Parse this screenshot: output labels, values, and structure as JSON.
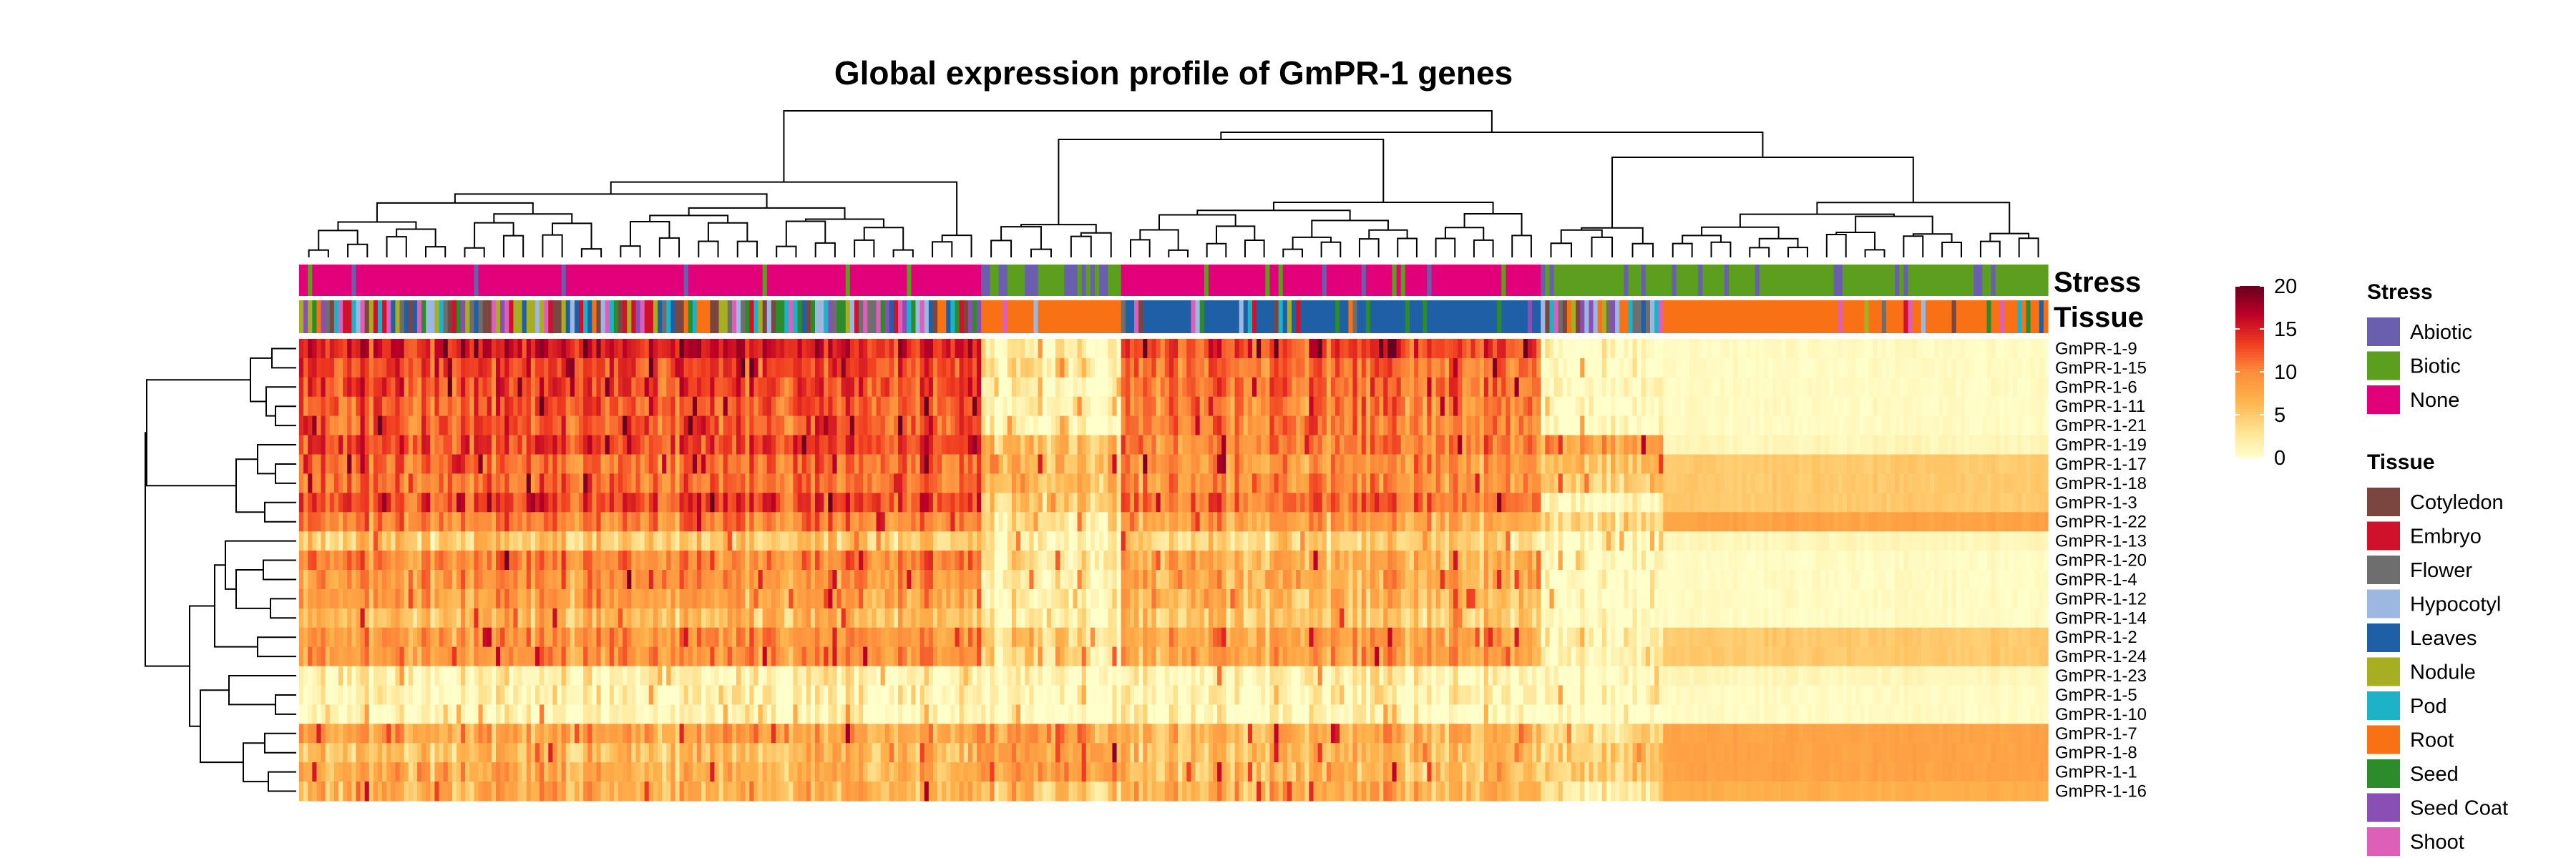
{
  "chart_data": {
    "type": "heatmap",
    "title": "Global expression profile of GmPR-1 genes",
    "rows": [
      "GmPR-1-9",
      "GmPR-1-15",
      "GmPR-1-6",
      "GmPR-1-11",
      "GmPR-1-21",
      "GmPR-1-19",
      "GmPR-1-17",
      "GmPR-1-18",
      "GmPR-1-3",
      "GmPR-1-22",
      "GmPR-1-13",
      "GmPR-1-20",
      "GmPR-1-4",
      "GmPR-1-12",
      "GmPR-1-14",
      "GmPR-1-2",
      "GmPR-1-24",
      "GmPR-1-23",
      "GmPR-1-5",
      "GmPR-1-10",
      "GmPR-1-7",
      "GmPR-1-8",
      "GmPR-1-1",
      "GmPR-1-16"
    ],
    "column_clusters": [
      {
        "span": [
          0.0,
          0.39
        ],
        "stress": "None",
        "tissue": "Mixed",
        "levels": [
          15,
          13,
          13,
          12,
          12,
          13,
          11,
          11,
          13,
          10,
          5,
          10,
          9,
          8,
          6,
          9,
          9,
          1,
          1,
          0.5,
          8,
          6,
          7,
          7
        ]
      },
      {
        "span": [
          0.39,
          0.47
        ],
        "stress": "Abiotic/Biotic",
        "tissue": "Root",
        "levels": [
          2,
          3,
          1,
          1,
          1,
          6,
          7,
          6,
          5,
          3,
          2,
          3,
          2,
          2,
          1,
          4,
          4,
          1,
          0.5,
          0.5,
          9,
          9,
          9,
          6
        ]
      },
      {
        "span": [
          0.47,
          0.71
        ],
        "stress": "None",
        "tissue": "Leaves",
        "levels": [
          13,
          11,
          11,
          10,
          10,
          10,
          9,
          9,
          11,
          8,
          4,
          7,
          7,
          6,
          5,
          8,
          8,
          1,
          1,
          0.5,
          7,
          6,
          6,
          7
        ]
      },
      {
        "span": [
          0.71,
          0.78
        ],
        "stress": "Biotic",
        "tissue": "Mixed",
        "levels": [
          1,
          0.5,
          0.5,
          0.5,
          0.5,
          9,
          6,
          5,
          1,
          4,
          0.5,
          1,
          1,
          1,
          0.5,
          2,
          2,
          0.5,
          0.5,
          0.5,
          4,
          5,
          5,
          3
        ]
      },
      {
        "span": [
          0.78,
          1.0
        ],
        "stress": "Biotic",
        "tissue": "Root",
        "levels": [
          0.5,
          0.5,
          0.5,
          0.5,
          0.5,
          1,
          5,
          5,
          5,
          8,
          1,
          0.5,
          0.5,
          0.5,
          0.5,
          5,
          5,
          1,
          0.5,
          0.5,
          8,
          8,
          8,
          7
        ]
      }
    ],
    "annotation_tracks": [
      "Stress",
      "Tissue"
    ],
    "color_scale": {
      "min": 0,
      "max": 20,
      "ticks": [
        0,
        5,
        10,
        15,
        20
      ],
      "colors": [
        "#FFFFCC",
        "#FFE08C",
        "#FEB24C",
        "#FD8D3C",
        "#F03B20",
        "#BD0026",
        "#67001F"
      ]
    },
    "legend": {
      "Stress": [
        {
          "label": "Abiotic",
          "color": "#6A5FAE"
        },
        {
          "label": "Biotic",
          "color": "#5C9E1E"
        },
        {
          "label": "None",
          "color": "#E2007A"
        }
      ],
      "Tissue": [
        {
          "label": "Cotyledon",
          "color": "#7B4540"
        },
        {
          "label": "Embryo",
          "color": "#D0112B"
        },
        {
          "label": "Flower",
          "color": "#6E6E6E"
        },
        {
          "label": "Hypocotyl",
          "color": "#9DB8E0"
        },
        {
          "label": "Leaves",
          "color": "#1F5FA6"
        },
        {
          "label": "Nodule",
          "color": "#A8AE22"
        },
        {
          "label": "Pod",
          "color": "#1EB2C8"
        },
        {
          "label": "Root",
          "color": "#F87114"
        },
        {
          "label": "Seed",
          "color": "#2C8C2C"
        },
        {
          "label": "Seed Coat",
          "color": "#8A4FB5"
        },
        {
          "label": "Shoot",
          "color": "#DE5FB8"
        }
      ]
    }
  }
}
